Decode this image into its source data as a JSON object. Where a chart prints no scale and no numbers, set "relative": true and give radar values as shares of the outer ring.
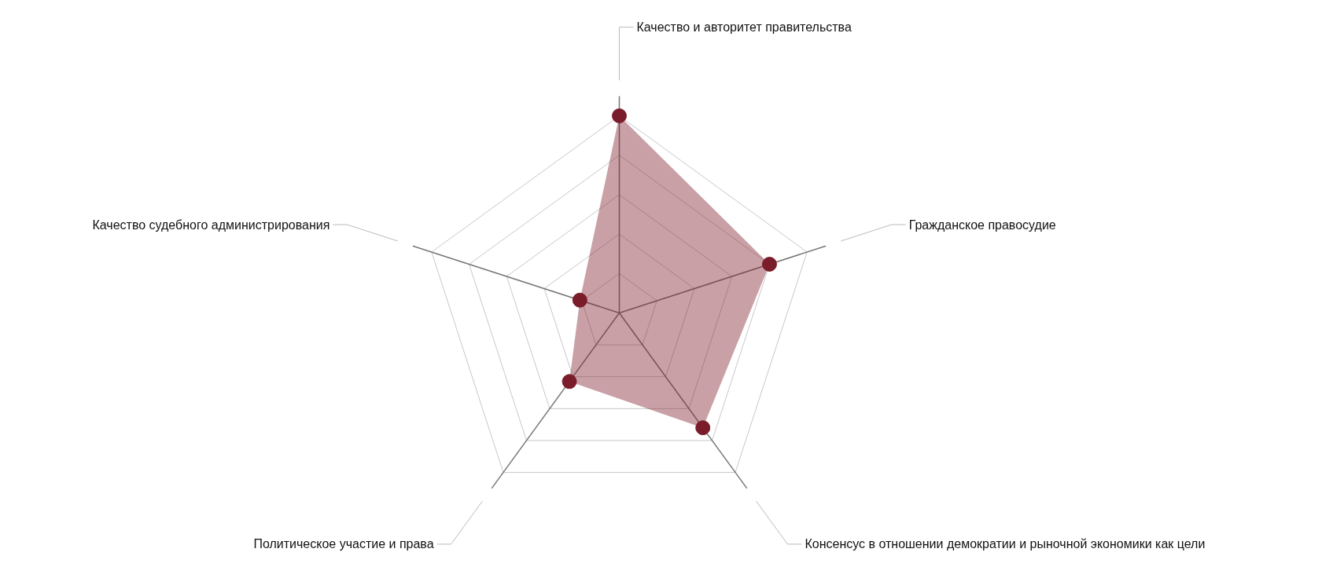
{
  "chart_data": {
    "type": "radar",
    "relative": true,
    "grid": true,
    "marker": "circle",
    "categories": [
      "Качество и авторитет правительства",
      "Гражданское правосудие",
      "Консенсус в отношении демократии и рыночной экономики как цели",
      "Политическое участие и права",
      "Качество судебного администрирования"
    ],
    "series": [
      {
        "color": "#7b1c2a",
        "values": [
          1.0,
          0.8,
          0.72,
          0.43,
          0.21
        ]
      }
    ]
  }
}
